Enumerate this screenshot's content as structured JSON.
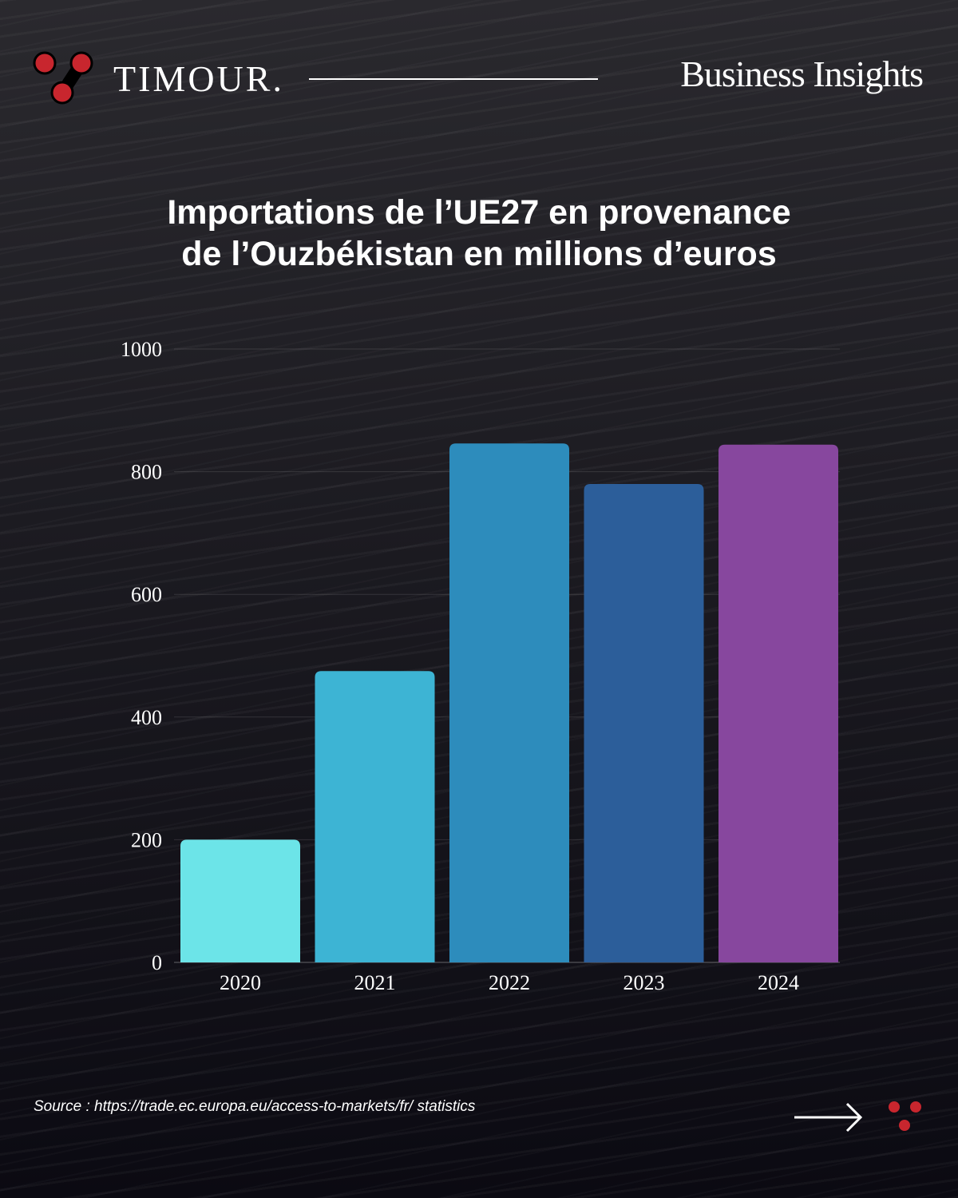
{
  "header": {
    "brand": "TIMOUR.",
    "section": "Business Insights"
  },
  "title_lines": [
    "Importations de l’UE27 en provenance",
    "de l’Ouzbékistan en millions d’euros"
  ],
  "chart_data": {
    "type": "bar",
    "title": "Importations de l’UE27 en provenance de l’Ouzbékistan en millions d’euros",
    "categories": [
      "2020",
      "2021",
      "2022",
      "2023",
      "2024"
    ],
    "values": [
      200,
      475,
      846,
      780,
      844
    ],
    "colors": [
      "#6ce4e8",
      "#3db4d4",
      "#2d8cbc",
      "#2c5e9a",
      "#87479e"
    ],
    "yticks": [
      "0",
      "200",
      "400",
      "600",
      "800",
      "1000"
    ],
    "ylim": [
      0,
      1000
    ],
    "xlabel": "",
    "ylabel": "",
    "grid": true
  },
  "footer": {
    "source": "Source : https://trade.ec.europa.eu/access-to-markets/fr/ statistics"
  },
  "colors": {
    "accent": "#c8262e"
  }
}
